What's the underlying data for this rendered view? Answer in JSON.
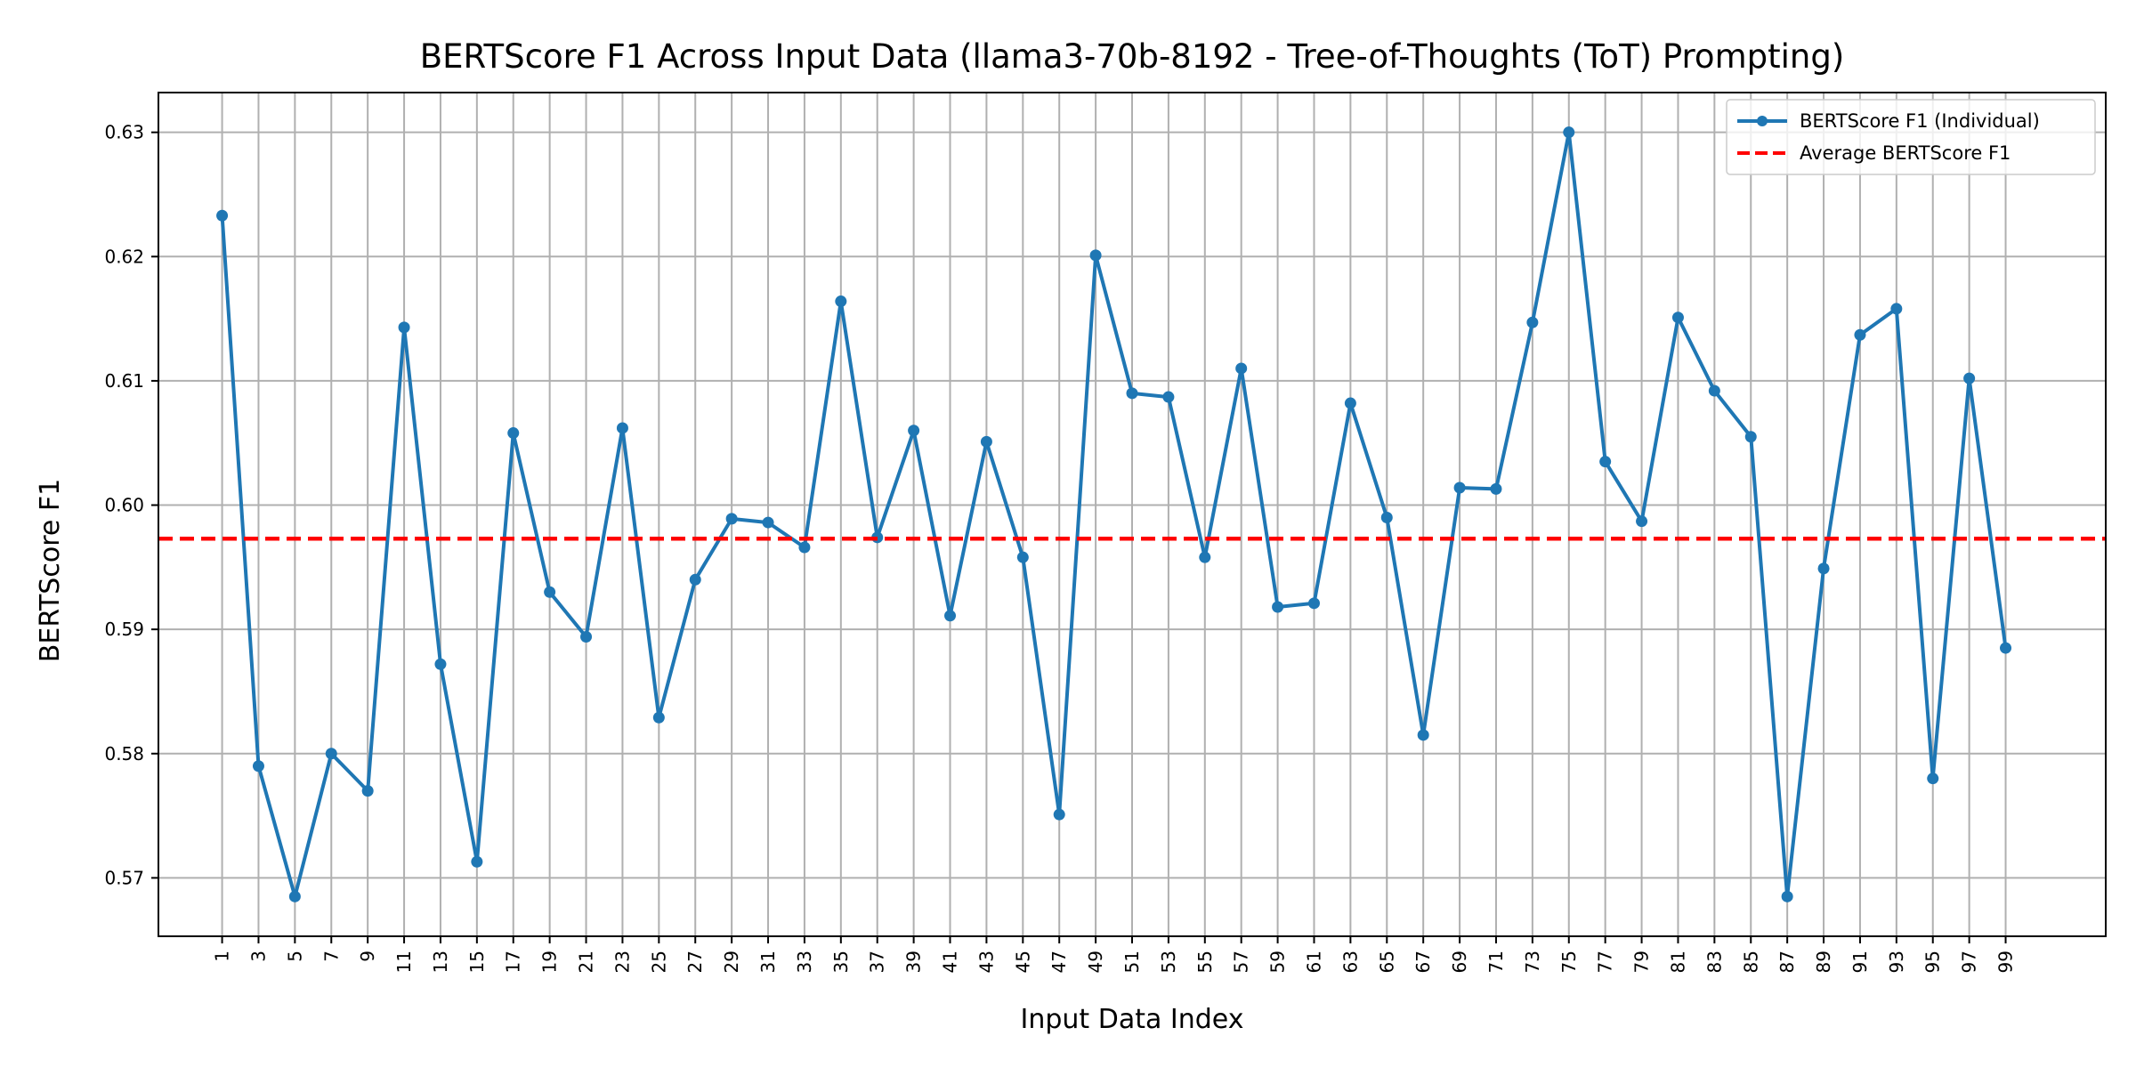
{
  "chart_data": {
    "type": "line",
    "title": "BERTScore F1 Across Input Data (llama3-70b-8192 - Tree-of-Thoughts (ToT) Prompting)",
    "xlabel": "Input Data Index",
    "ylabel": "BERTScore F1",
    "xlim": [
      -2.5,
      104.5
    ],
    "ylim": [
      0.5653,
      0.6332
    ],
    "yticks": [
      0.57,
      0.58,
      0.59,
      0.6,
      0.61,
      0.62,
      0.63
    ],
    "ytick_labels": [
      "0.57",
      "0.58",
      "0.59",
      "0.60",
      "0.61",
      "0.62",
      "0.63"
    ],
    "xticks": [
      1,
      3,
      5,
      7,
      9,
      11,
      13,
      15,
      17,
      19,
      21,
      23,
      25,
      27,
      29,
      31,
      33,
      35,
      37,
      39,
      41,
      43,
      45,
      47,
      49,
      51,
      53,
      55,
      57,
      59,
      61,
      63,
      65,
      67,
      69,
      71,
      73,
      75,
      77,
      79,
      81,
      83,
      85,
      87,
      89,
      91,
      93,
      95,
      97,
      99
    ],
    "grid": true,
    "legend_position": "top-right",
    "series": [
      {
        "name": "BERTScore F1 (Individual)",
        "kind": "line-marker",
        "color": "#1f77b4",
        "x": [
          1,
          3,
          5,
          7,
          9,
          11,
          13,
          15,
          17,
          19,
          21,
          23,
          25,
          27,
          29,
          31,
          33,
          35,
          37,
          39,
          41,
          43,
          45,
          47,
          49,
          51,
          53,
          55,
          57,
          59,
          61,
          63,
          65,
          67,
          69,
          71,
          73,
          75,
          77,
          79,
          81,
          83,
          85,
          87,
          89,
          91,
          93,
          95,
          97,
          99
        ],
        "values": [
          0.6233,
          0.579,
          0.5685,
          0.58,
          0.577,
          0.6143,
          0.5872,
          0.5713,
          0.6058,
          0.593,
          0.5894,
          0.6062,
          0.5829,
          0.594,
          0.5989,
          0.5986,
          0.5966,
          0.6164,
          0.5974,
          0.606,
          0.5911,
          0.6051,
          0.5958,
          0.5751,
          0.6201,
          0.609,
          0.6087,
          0.5958,
          0.611,
          0.5918,
          0.5921,
          0.6082,
          0.599,
          0.5815,
          0.6014,
          0.6013,
          0.6147,
          0.63,
          0.6035,
          0.5987,
          0.6151,
          0.6092,
          0.6055,
          0.5685,
          0.5949,
          0.6137,
          0.6158,
          0.578,
          0.6102,
          0.5885
        ]
      },
      {
        "name": "Average BERTScore F1",
        "kind": "hline-dashed",
        "color": "#ff0000",
        "value": 0.5973
      }
    ]
  }
}
